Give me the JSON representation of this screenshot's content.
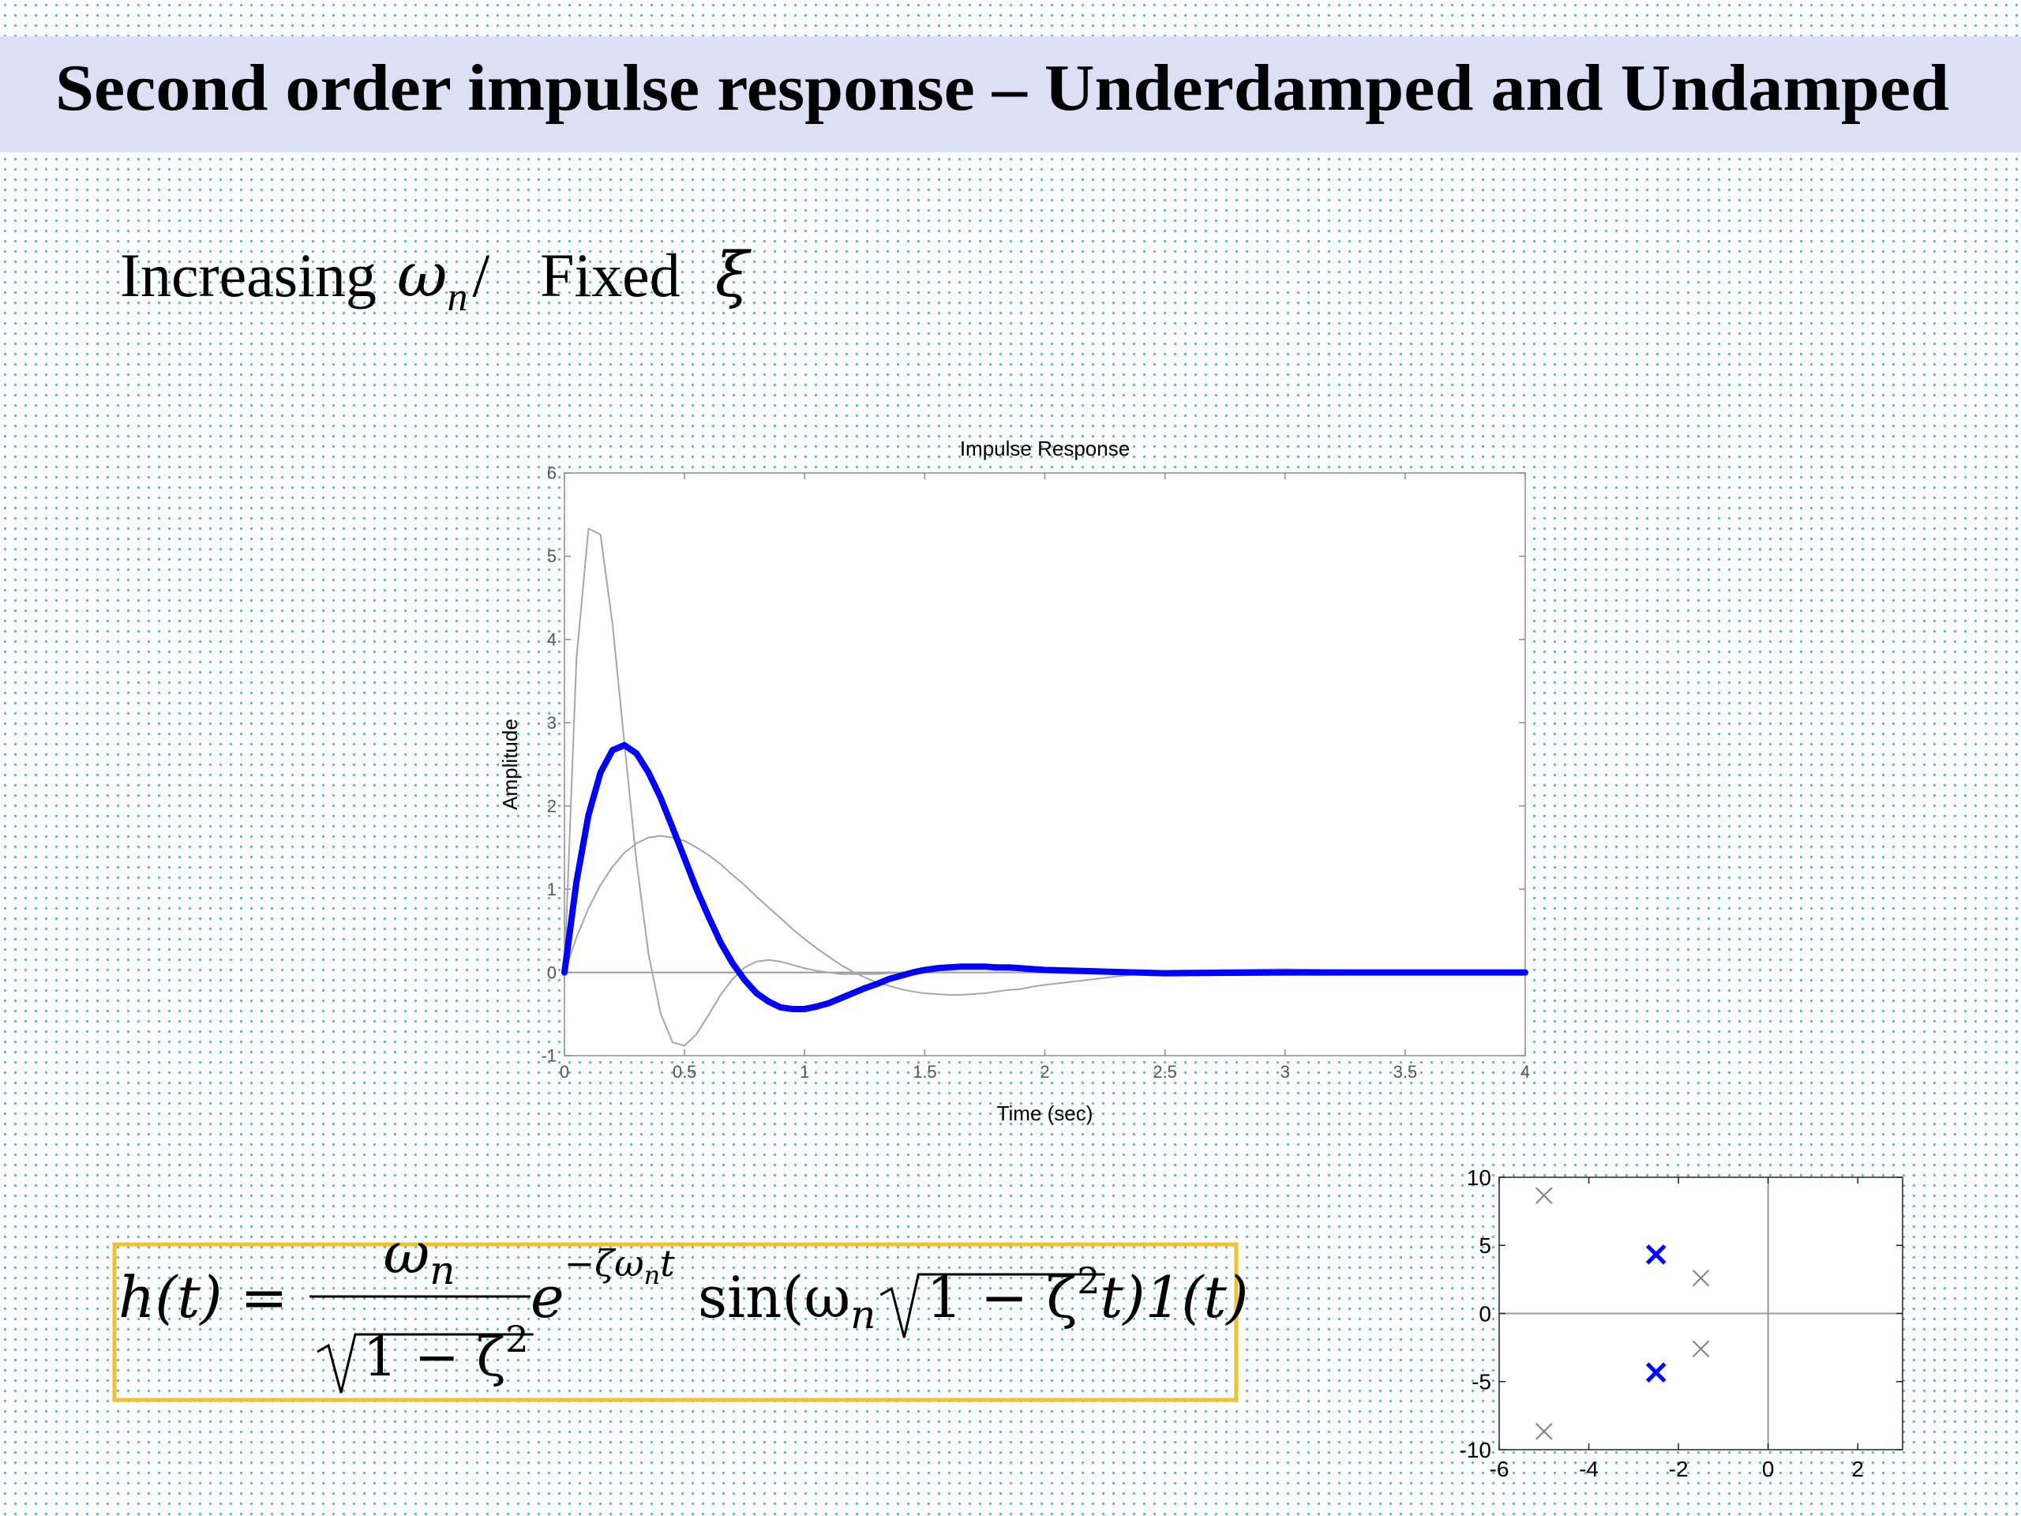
{
  "slide": {
    "title": "Second order impulse response – Underdamped and Undamped",
    "subtitle": {
      "lead": "Increasing",
      "omega": "ω",
      "omega_sub": "n",
      "slash": "/",
      "fixed": "Fixed",
      "xi": "ξ"
    },
    "formula": {
      "lhs": "h(t) =",
      "num": "ω",
      "num_sub": "n",
      "den": "1 − ζ",
      "den_sup": "2",
      "exp_base": "e",
      "exp": "−ζω",
      "exp_sub": "n",
      "exp_t": "t",
      "rhs": "sin(ω",
      "rhs_sub": "n",
      "rhs_root": "1 − ζ",
      "rhs_sup": "2",
      "rhs_tail": "t)1(t)"
    }
  },
  "chart_data": [
    {
      "type": "line",
      "title": "Impulse Response",
      "x_label": "Time (sec)",
      "y_label": "Amplitude",
      "x": [
        0,
        0.05,
        0.1,
        0.15,
        0.2,
        0.25,
        0.3,
        0.35,
        0.4,
        0.45,
        0.5,
        0.55,
        0.6,
        0.65,
        0.7,
        0.75,
        0.8,
        0.85,
        0.9,
        0.95,
        1,
        1.05,
        1.1,
        1.15,
        1.2,
        1.25,
        1.3,
        1.35,
        1.4,
        1.45,
        1.5,
        1.55,
        1.6,
        1.65,
        1.7,
        1.75,
        1.8,
        1.85,
        1.9,
        1.95,
        2,
        2.5,
        3,
        3.5,
        4
      ],
      "series": [
        {
          "color": "#a6a6a6",
          "values": [
            0,
            0.42,
            0.77,
            1.05,
            1.27,
            1.44,
            1.55,
            1.62,
            1.64,
            1.62,
            1.58,
            1.5,
            1.41,
            1.3,
            1.17,
            1.05,
            0.91,
            0.78,
            0.65,
            0.52,
            0.4,
            0.29,
            0.19,
            0.09,
            0.01,
            -0.06,
            -0.12,
            -0.16,
            -0.2,
            -0.23,
            -0.25,
            -0.26,
            -0.27,
            -0.27,
            -0.26,
            -0.25,
            -0.23,
            -0.21,
            -0.2,
            -0.17,
            -0.15,
            0.02,
            0.04,
            0.01,
            -0.01
          ]
        },
        {
          "color": "#a6a6a6",
          "values": [
            0,
            3.77,
            5.33,
            5.26,
            4.19,
            2.74,
            1.33,
            0.22,
            -0.49,
            -0.84,
            -0.88,
            -0.74,
            -0.51,
            -0.27,
            -0.08,
            0.06,
            0.13,
            0.15,
            0.13,
            0.09,
            0.05,
            0.02,
            0,
            -0.02,
            -0.02,
            -0.02,
            -0.02,
            -0.01,
            0,
            0,
            0,
            0,
            0,
            0,
            0,
            0,
            0,
            0,
            0,
            0,
            0,
            0,
            0,
            0,
            0
          ]
        },
        {
          "color": "#0000ff",
          "values": [
            0,
            1.09,
            1.89,
            2.4,
            2.67,
            2.73,
            2.63,
            2.4,
            2.1,
            1.74,
            1.37,
            1,
            0.67,
            0.36,
            0.11,
            -0.09,
            -0.25,
            -0.35,
            -0.42,
            -0.44,
            -0.44,
            -0.41,
            -0.37,
            -0.31,
            -0.25,
            -0.19,
            -0.14,
            -0.08,
            -0.04,
            0,
            0.03,
            0.05,
            0.06,
            0.07,
            0.07,
            0.07,
            0.06,
            0.06,
            0.05,
            0.04,
            0.03,
            -0.01,
            0,
            0,
            0
          ]
        }
      ],
      "xlim": [
        0,
        4
      ],
      "ylim": [
        -1,
        6
      ],
      "xticks": [
        0,
        0.5,
        1,
        1.5,
        2,
        2.5,
        3,
        3.5,
        4
      ],
      "yticks": [
        -1,
        0,
        1,
        2,
        3,
        4,
        5,
        6
      ],
      "grid": false
    },
    {
      "type": "scatter",
      "series": [
        {
          "color": "#808080",
          "x": [
            -5,
            -5,
            -1.5,
            -1.5
          ],
          "values": [
            8.66,
            -8.66,
            2.6,
            -2.6
          ]
        },
        {
          "color": "#0000ff",
          "x": [
            -2.5,
            -2.5
          ],
          "values": [
            4.33,
            -4.33
          ]
        }
      ],
      "xlim": [
        -6,
        3
      ],
      "ylim": [
        -10,
        10
      ],
      "xticks": [
        -6,
        -4,
        -2,
        0,
        2
      ],
      "yticks": [
        -10,
        -5,
        0,
        5,
        10
      ],
      "grid": false
    }
  ]
}
